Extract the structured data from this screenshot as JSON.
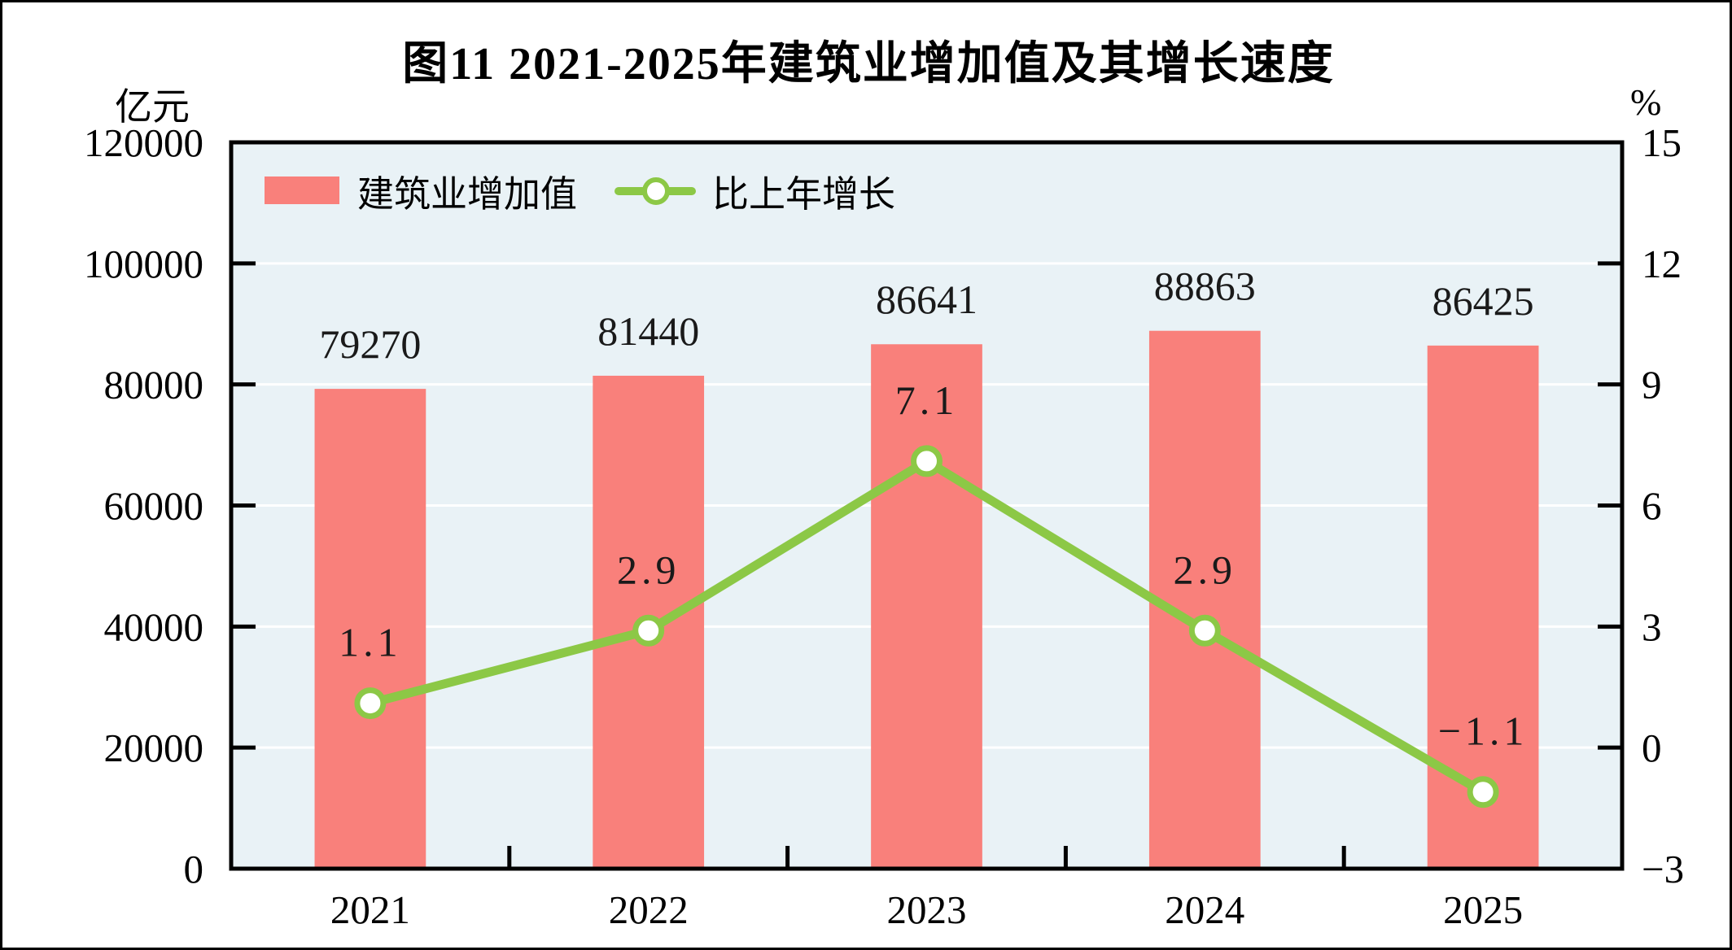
{
  "chart_data": {
    "type": "bar+line",
    "title": "图11  2021-2025年建筑业增加值及其增长速度",
    "categories": [
      "2021",
      "2022",
      "2023",
      "2024",
      "2025"
    ],
    "series": [
      {
        "name": "建筑业增加值",
        "type": "bar",
        "axis": "left",
        "color": "#F9807B",
        "values": [
          79270,
          81440,
          86641,
          88863,
          86425
        ],
        "value_labels": [
          "79270",
          "81440",
          "86641",
          "88863",
          "86425"
        ]
      },
      {
        "name": "比上年增长",
        "type": "line",
        "axis": "right",
        "color": "#8CC846",
        "marker_fill": "#FFFFFF",
        "values": [
          1.1,
          2.9,
          7.1,
          2.9,
          -1.1
        ],
        "value_labels": [
          "1.1",
          "2.9",
          "7.1",
          "2.9",
          "−1.1"
        ]
      }
    ],
    "left_axis": {
      "unit": "亿元",
      "min": 0,
      "max": 120000,
      "step": 20000,
      "tick_labels": [
        "0",
        "20000",
        "40000",
        "60000",
        "80000",
        "100000",
        "120000"
      ]
    },
    "right_axis": {
      "unit": "%",
      "min": -3,
      "max": 15,
      "step": 3,
      "tick_labels": [
        "−3",
        "0",
        "3",
        "6",
        "9",
        "12",
        "15"
      ]
    },
    "grid": "horizontal-white-gridlines",
    "legend_position": "top-left-inside",
    "plot_background": "#E9F2F6",
    "gridline_color": "#FFFFFF",
    "axis_color": "#000000",
    "label_color": "#1a1a1a"
  },
  "legend": {
    "items": [
      {
        "label": "建筑业增加值",
        "swatch": "bar"
      },
      {
        "label": "比上年增长",
        "swatch": "line"
      }
    ]
  }
}
